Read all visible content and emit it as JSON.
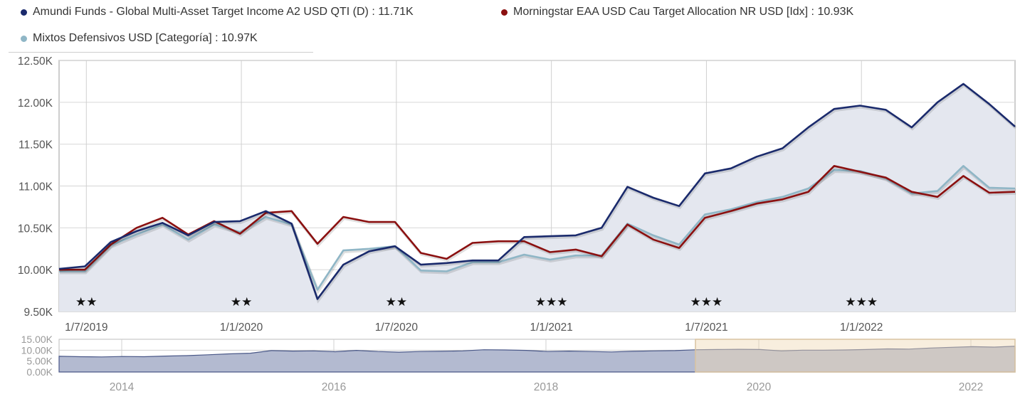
{
  "legend": {
    "items": [
      {
        "label": "Amundi Funds - Global Multi-Asset Target Income A2 USD QTI (D) : 11.71K",
        "color": "#1a2a6c"
      },
      {
        "label": "Morningstar EAA USD Cau Target Allocation NR USD [Idx] : 10.93K",
        "color": "#8b1010"
      },
      {
        "label": "Mixtos Defensivos USD [Categoría] : 10.97K",
        "color": "#8fb6c6"
      }
    ]
  },
  "main_axis": {
    "y_ticks": [
      "12.50K",
      "12.00K",
      "11.50K",
      "11.00K",
      "10.50K",
      "10.00K",
      "9.50K"
    ],
    "x_ticks": [
      "1/7/2019",
      "1/1/2020",
      "1/7/2020",
      "1/1/2021",
      "1/7/2021",
      "1/1/2022"
    ],
    "ratings": [
      "★★",
      "★★",
      "★★",
      "★★★",
      "★★★",
      "★★★"
    ]
  },
  "navigator": {
    "y_ticks": [
      "15.00K",
      "10.00K",
      "5.00K",
      "0.00K"
    ],
    "x_ticks": [
      "2014",
      "2016",
      "2018",
      "2020",
      "2022"
    ]
  },
  "colors": {
    "fund": "#1a2a6c",
    "index": "#8b1010",
    "category": "#8fb6c6",
    "area_fill": "#e4e7ef",
    "nav_fill": "#b3bad0",
    "nav_selection": "#f6eddf",
    "grid": "#d9d9d9"
  },
  "chart_data": {
    "type": "line",
    "title": "",
    "xlabel": "",
    "ylabel": "",
    "ylim": [
      9500,
      12500
    ],
    "x_tick_labels": [
      "1/7/2019",
      "1/1/2020",
      "1/7/2020",
      "1/1/2021",
      "1/7/2021",
      "1/1/2022"
    ],
    "y_tick_labels": [
      "9.50K",
      "10.00K",
      "10.50K",
      "11.00K",
      "11.50K",
      "12.00K",
      "12.50K"
    ],
    "grid": true,
    "legend_position": "top",
    "x": [
      "2019-06",
      "2019-07",
      "2019-08",
      "2019-09",
      "2019-10",
      "2019-11",
      "2019-12",
      "2020-01",
      "2020-02",
      "2020-03",
      "2020-04",
      "2020-05",
      "2020-06",
      "2020-07",
      "2020-08",
      "2020-09",
      "2020-10",
      "2020-11",
      "2020-12",
      "2021-01",
      "2021-02",
      "2021-03",
      "2021-04",
      "2021-05",
      "2021-06",
      "2021-07",
      "2021-08",
      "2021-09",
      "2021-10",
      "2021-11",
      "2021-12",
      "2022-01",
      "2022-02",
      "2022-03",
      "2022-04",
      "2022-05",
      "2022-06",
      "2022-07"
    ],
    "series": [
      {
        "name": "Amundi Funds - Global Multi-Asset Target Income A2 USD QTI (D)",
        "final_value": "11.71K",
        "values": [
          10010,
          10040,
          10330,
          10460,
          10560,
          10410,
          10570,
          10580,
          10700,
          10550,
          9650,
          10060,
          10220,
          10280,
          10060,
          10080,
          10110,
          10110,
          10390,
          10400,
          10410,
          10500,
          10990,
          10860,
          10760,
          11150,
          11210,
          11350,
          11450,
          11700,
          11920,
          11960,
          11910,
          11700,
          12000,
          12220,
          11980,
          11710
        ]
      },
      {
        "name": "Morningstar EAA USD Cau Target Allocation NR USD [Idx]",
        "final_value": "10.93K",
        "values": [
          10000,
          10000,
          10300,
          10500,
          10620,
          10420,
          10580,
          10430,
          10680,
          10700,
          10310,
          10630,
          10570,
          10570,
          10200,
          10130,
          10320,
          10340,
          10340,
          10210,
          10240,
          10160,
          10540,
          10360,
          10260,
          10620,
          10700,
          10790,
          10840,
          10930,
          11240,
          11170,
          11100,
          10930,
          10870,
          11120,
          10920,
          10930
        ]
      },
      {
        "name": "Mixtos Defensivos USD [Categoría]",
        "final_value": "10.97K",
        "values": [
          9980,
          9980,
          10290,
          10420,
          10540,
          10360,
          10540,
          10450,
          10630,
          10540,
          9760,
          10230,
          10250,
          10280,
          9990,
          9980,
          10090,
          10090,
          10180,
          10120,
          10170,
          10170,
          10550,
          10410,
          10300,
          10660,
          10720,
          10810,
          10870,
          10970,
          11190,
          11180,
          11090,
          10910,
          10940,
          11240,
          10980,
          10970
        ]
      }
    ],
    "navigator": {
      "type": "area",
      "ylim": [
        0,
        15000
      ],
      "x_tick_labels": [
        "2014",
        "2016",
        "2018",
        "2020",
        "2022"
      ],
      "selected_range": [
        "2019-06",
        "2022-07"
      ]
    }
  }
}
